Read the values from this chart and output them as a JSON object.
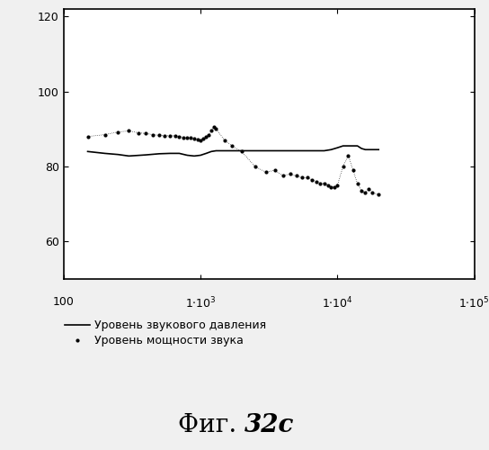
{
  "legend_solid": "Уровень звукового давления",
  "legend_dotted": "Уровень мощности звука",
  "fig_title_normal": "Фиг. ",
  "fig_title_bold": "32c",
  "xlim": [
    100,
    100000
  ],
  "ylim": [
    50,
    122
  ],
  "yticks": [
    60,
    80,
    100,
    120
  ],
  "background_color": "#f0f0f0",
  "plot_bg_color": "#ffffff",
  "solid_color": "#000000",
  "dotted_color": "#000000",
  "solid_x": [
    150,
    200,
    250,
    300,
    400,
    500,
    600,
    700,
    800,
    900,
    1000,
    1100,
    1200,
    1300,
    1500,
    1700,
    2000,
    2500,
    3000,
    4000,
    5000,
    6000,
    7000,
    8000,
    9000,
    10000,
    11000,
    12000,
    13000,
    14000,
    15000,
    16000,
    17000,
    18000,
    20000
  ],
  "solid_y": [
    84.0,
    83.5,
    83.2,
    82.8,
    83.1,
    83.4,
    83.5,
    83.5,
    83.0,
    82.8,
    83.0,
    83.5,
    84.0,
    84.2,
    84.2,
    84.2,
    84.2,
    84.2,
    84.2,
    84.2,
    84.2,
    84.2,
    84.2,
    84.2,
    84.5,
    85.0,
    85.5,
    85.5,
    85.5,
    85.5,
    84.8,
    84.5,
    84.5,
    84.5,
    84.5
  ],
  "dotted_x": [
    150,
    200,
    250,
    300,
    350,
    400,
    450,
    500,
    550,
    600,
    650,
    700,
    750,
    800,
    850,
    900,
    950,
    1000,
    1050,
    1100,
    1150,
    1200,
    1250,
    1300,
    1500,
    1700,
    2000,
    2500,
    3000,
    3500,
    4000,
    4500,
    5000,
    5500,
    6000,
    6500,
    7000,
    7500,
    8000,
    8500,
    9000,
    9500,
    10000,
    11000,
    12000,
    13000,
    14000,
    15000,
    16000,
    17000,
    18000,
    20000
  ],
  "dotted_y": [
    88.0,
    88.5,
    89.2,
    89.5,
    89.0,
    88.8,
    88.5,
    88.3,
    88.2,
    88.2,
    88.2,
    88.0,
    87.8,
    87.8,
    87.8,
    87.5,
    87.2,
    87.0,
    87.5,
    88.0,
    88.5,
    89.5,
    90.5,
    90.0,
    87.0,
    85.5,
    84.0,
    80.0,
    78.5,
    79.0,
    77.5,
    78.0,
    77.5,
    77.0,
    77.0,
    76.5,
    76.0,
    75.5,
    75.5,
    75.0,
    74.5,
    74.5,
    75.0,
    80.0,
    83.0,
    79.0,
    75.5,
    73.5,
    73.0,
    74.0,
    73.0,
    72.5
  ]
}
